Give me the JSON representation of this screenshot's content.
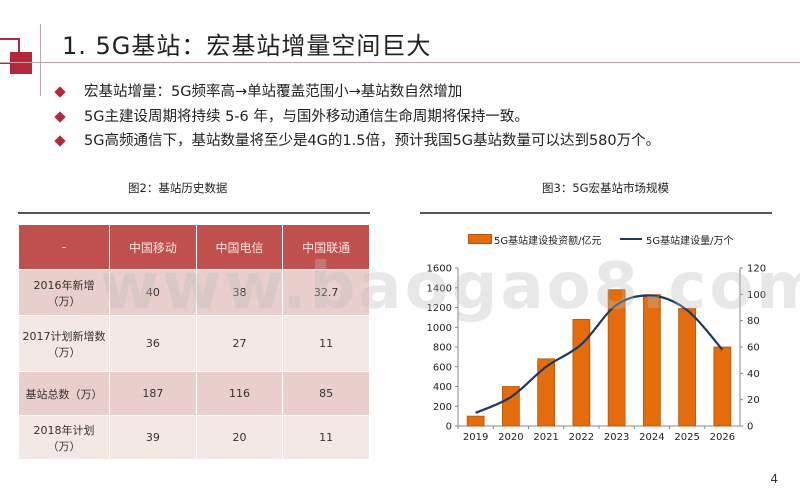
{
  "title": "1. 5G基站：宏基站增量空间巨大",
  "bullets": [
    "宏基站增量：5G频率高→单站覆盖范围小→基站数自然增加",
    "5G主建设周期将持续 5-6 年，与国外移动通信生命周期将保持一致。",
    "5G高频通信下，基站数量将至少是4G的1.5倍，预计我国5G基站数量可以达到580万个。"
  ],
  "table_caption": "图2：基站历史数据",
  "table": {
    "headers": [
      "-",
      "中国移动",
      "中国电信",
      "中国联通"
    ],
    "rows": [
      {
        "label": "2016年新增（万）",
        "values": [
          "40",
          "38",
          "32.7"
        ]
      },
      {
        "label": "2017计划新增数（万）",
        "values": [
          "36",
          "27",
          "11"
        ]
      },
      {
        "label": "基站总数（万）",
        "values": [
          "187",
          "116",
          "85"
        ]
      },
      {
        "label": "2018年计划（万）",
        "values": [
          "39",
          "20",
          "11"
        ]
      }
    ]
  },
  "chart_caption": "图3：5G宏基站市场规模",
  "colors": {
    "accent": "#b5283a",
    "bar": "#e46c0a",
    "line": "#1f3864",
    "table_header": "#c0504d"
  },
  "chart_data": {
    "type": "bar",
    "categories": [
      "2019",
      "2020",
      "2021",
      "2022",
      "2023",
      "2024",
      "2025",
      "2026"
    ],
    "series": [
      {
        "name": "5G基站建设投资额/亿元",
        "type": "bar",
        "axis": "left",
        "values": [
          100,
          400,
          680,
          1080,
          1380,
          1330,
          1190,
          800
        ]
      },
      {
        "name": "5G基站建设量/万个",
        "type": "line",
        "axis": "right",
        "values": [
          10,
          22,
          45,
          62,
          92,
          99,
          88,
          58
        ]
      }
    ],
    "ylim": [
      0,
      1600
    ],
    "yticks": [
      "0",
      "200",
      "400",
      "600",
      "800",
      "1000",
      "1200",
      "1400",
      "1600"
    ],
    "y2lim": [
      0,
      120
    ],
    "y2ticks": [
      "0",
      "20",
      "40",
      "60",
      "80",
      "100",
      "120"
    ],
    "legend_position": "top"
  },
  "watermark": "www.baogao8.com",
  "page_number": "4"
}
